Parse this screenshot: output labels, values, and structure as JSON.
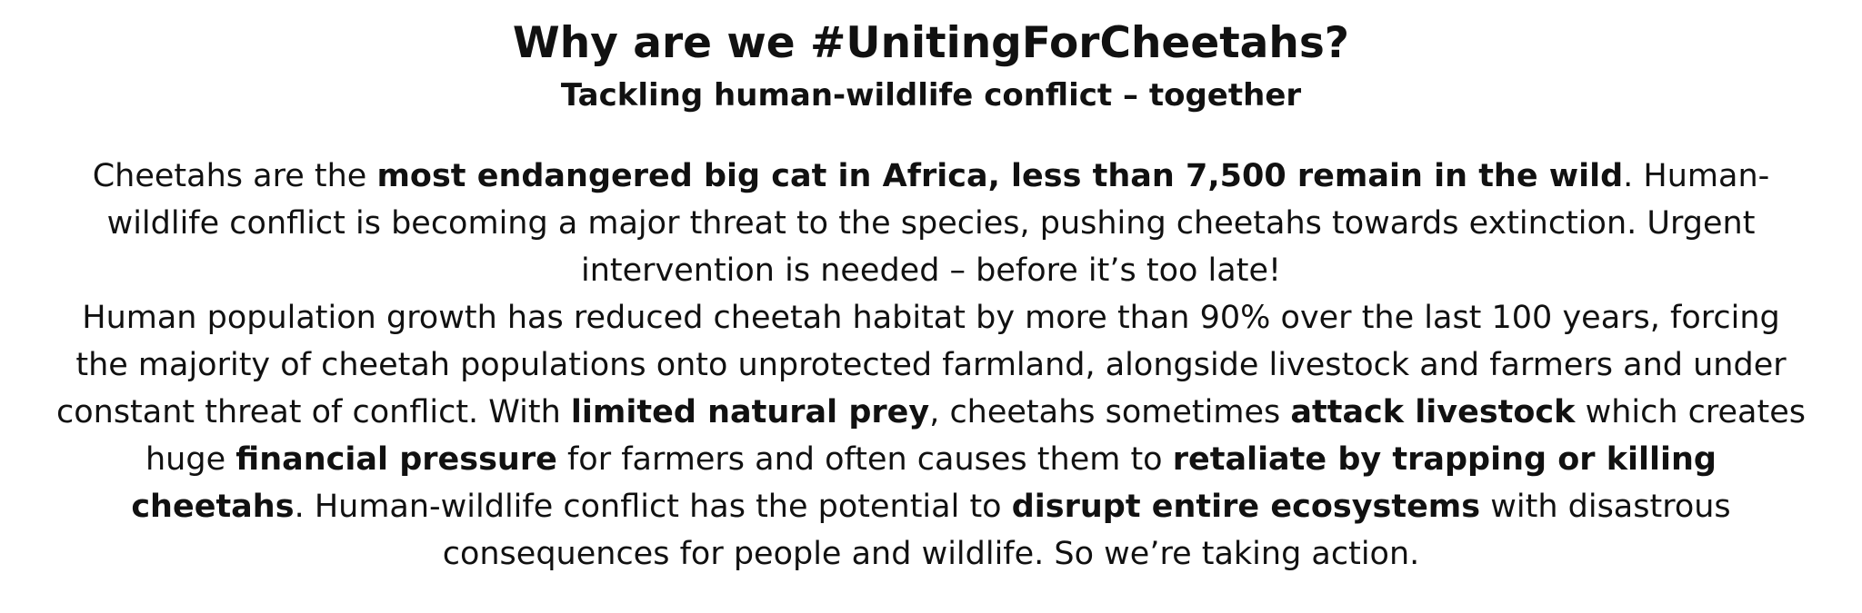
{
  "document": {
    "title": "Why are we #UnitingForCheetahs?",
    "subtitle": "Tackling human-wildlife conflict – together",
    "paragraphs": [
      {
        "segments": [
          "Cheetahs are the ",
          "most endangered big cat in Africa, less than 7,500 remain in the wild",
          ". Human-wildlife conflict is becoming a major threat to the species, pushing cheetahs towards extinction. Urgent intervention is needed – before it’s too late!"
        ]
      },
      {
        "segments": [
          "Human population growth has reduced cheetah habitat by more than 90% over the last 100 years, forcing the majority of cheetah populations onto unprotected farmland, alongside livestock and farmers and under constant threat of conflict. With ",
          "limited natural prey",
          ", cheetahs sometimes ",
          "attack livestock",
          " which creates huge ",
          "financial pressure",
          " for farmers and often causes them to ",
          "retaliate by trapping or killing cheetahs",
          ". Human-wildlife conflict has the potential to ",
          "disrupt entire ecosystems",
          " with disastrous consequences for people and wildlife. So we’re taking action."
        ]
      }
    ]
  }
}
